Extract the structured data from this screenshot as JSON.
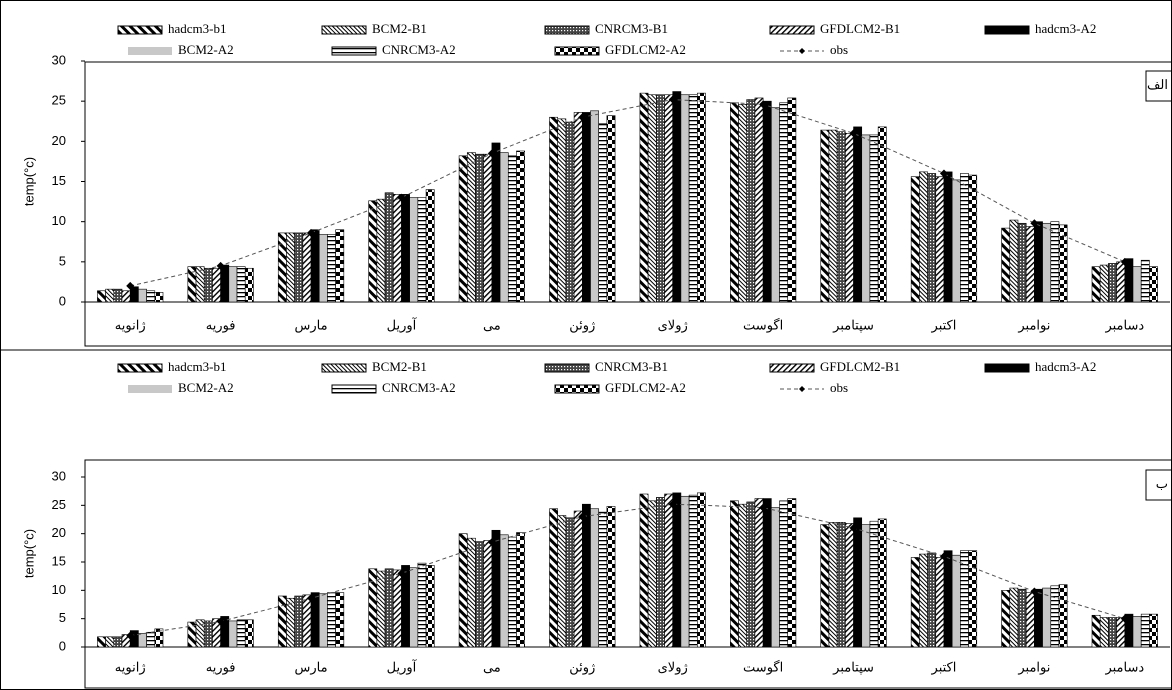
{
  "chart_data": [
    {
      "type": "bar",
      "panel_label": "الف",
      "y_label": "temp(°c)",
      "categories": [
        "ژانویه",
        "فوریه",
        "مارس",
        "آوریل",
        "می",
        "ژوئن",
        "ژولای",
        "اگوست",
        "سپتامبر",
        "اکتبر",
        "نوامبر",
        "دسامبر"
      ],
      "ylim": [
        0,
        30
      ],
      "yticks": [
        0,
        5,
        10,
        15,
        20,
        25,
        30
      ],
      "series": [
        {
          "name": "hadcm3-b1",
          "color": "#000000",
          "pattern": "wide-back-stripes",
          "values": [
            1.4,
            4.4,
            8.6,
            12.6,
            18.2,
            23.0,
            26.0,
            24.8,
            21.4,
            15.6,
            9.2,
            4.4
          ]
        },
        {
          "name": "BCM2-B1",
          "color": "#000000",
          "pattern": "fine-back-stripes",
          "values": [
            1.6,
            4.4,
            8.6,
            12.8,
            18.6,
            22.8,
            25.8,
            24.6,
            21.4,
            16.2,
            10.2,
            4.6
          ]
        },
        {
          "name": "CNRCM3-B1",
          "color": "#000000",
          "pattern": "crosshatch",
          "values": [
            1.6,
            4.2,
            8.6,
            13.6,
            18.4,
            22.4,
            25.8,
            25.2,
            21.2,
            16.0,
            9.8,
            4.8
          ]
        },
        {
          "name": "GFDLCM2-B1",
          "color": "#000000",
          "pattern": "fwd-stripes",
          "values": [
            1.4,
            4.2,
            8.6,
            13.4,
            18.4,
            23.6,
            25.8,
            25.4,
            21.0,
            15.6,
            9.4,
            5.0
          ]
        },
        {
          "name": "hadcm3-A2",
          "color": "#000000",
          "pattern": "solid",
          "values": [
            1.9,
            4.6,
            9.0,
            13.4,
            19.8,
            23.6,
            26.2,
            25.0,
            21.8,
            16.2,
            10.0,
            5.4
          ]
        },
        {
          "name": "BCM2-A2",
          "color": "#c8c8c8",
          "pattern": "solid",
          "values": [
            1.6,
            4.4,
            8.4,
            13.0,
            18.6,
            23.8,
            25.8,
            24.2,
            20.8,
            15.2,
            9.8,
            4.4
          ]
        },
        {
          "name": "CNRCM3-A2",
          "color": "#000000",
          "pattern": "horizontal-lines",
          "values": [
            1.4,
            4.4,
            8.4,
            13.0,
            18.2,
            22.2,
            25.8,
            24.8,
            20.8,
            16.0,
            10.0,
            5.2
          ]
        },
        {
          "name": "GFDLCM2-A2",
          "color": "#000000",
          "pattern": "checker",
          "values": [
            1.2,
            4.2,
            9.0,
            14.0,
            18.8,
            23.2,
            26.0,
            25.4,
            21.8,
            15.8,
            9.6,
            4.4
          ]
        },
        {
          "name": "obs",
          "color": "#555555",
          "mark": "dashed-line",
          "values": [
            2.0,
            4.5,
            8.6,
            13.0,
            18.5,
            23.0,
            25.2,
            24.6,
            21.0,
            16.0,
            9.8,
            5.0
          ]
        }
      ]
    },
    {
      "type": "bar",
      "panel_label": "ب",
      "y_label": "temp(°c)",
      "categories": [
        "ژانویه",
        "فوریه",
        "مارس",
        "آوریل",
        "می",
        "ژوئن",
        "ژولای",
        "اگوست",
        "سپتامبر",
        "اکتبر",
        "نوامبر",
        "دسامبر"
      ],
      "ylim": [
        0,
        33
      ],
      "yticks": [
        0,
        5,
        10,
        15,
        20,
        25,
        30
      ],
      "series": [
        {
          "name": "hadcm3-b1",
          "color": "#000000",
          "pattern": "wide-back-stripes",
          "values": [
            1.8,
            4.4,
            9.0,
            13.8,
            20.0,
            24.4,
            27.0,
            25.8,
            21.6,
            15.8,
            10.0,
            5.6
          ]
        },
        {
          "name": "BCM2-B1",
          "color": "#000000",
          "pattern": "fine-back-stripes",
          "values": [
            1.8,
            4.8,
            8.6,
            13.4,
            19.2,
            23.2,
            25.8,
            25.2,
            22.0,
            16.4,
            10.4,
            5.2
          ]
        },
        {
          "name": "CNRCM3-B1",
          "color": "#000000",
          "pattern": "crosshatch",
          "values": [
            1.8,
            4.6,
            9.0,
            13.8,
            18.6,
            22.8,
            26.4,
            25.6,
            22.0,
            16.6,
            10.2,
            5.2
          ]
        },
        {
          "name": "GFDLCM2-B1",
          "color": "#000000",
          "pattern": "fwd-stripes",
          "values": [
            2.2,
            5.0,
            9.2,
            13.6,
            18.8,
            24.0,
            27.0,
            26.2,
            21.8,
            15.8,
            9.6,
            5.2
          ]
        },
        {
          "name": "hadcm3-A2",
          "color": "#000000",
          "pattern": "solid",
          "values": [
            2.9,
            5.4,
            9.6,
            14.4,
            20.6,
            25.2,
            27.2,
            26.2,
            22.8,
            17.0,
            10.2,
            5.8
          ]
        },
        {
          "name": "BCM2-A2",
          "color": "#c8c8c8",
          "pattern": "solid",
          "values": [
            2.4,
            4.6,
            9.4,
            14.0,
            19.8,
            24.4,
            26.6,
            24.6,
            21.6,
            16.2,
            10.4,
            5.4
          ]
        },
        {
          "name": "CNRCM3-A2",
          "color": "#000000",
          "pattern": "horizontal-lines",
          "values": [
            2.6,
            4.8,
            9.6,
            14.8,
            19.4,
            23.8,
            26.8,
            25.8,
            22.2,
            17.0,
            10.8,
            5.8
          ]
        },
        {
          "name": "GFDLCM2-A2",
          "color": "#000000",
          "pattern": "checker",
          "values": [
            3.2,
            4.8,
            9.6,
            14.4,
            20.2,
            24.8,
            27.2,
            26.2,
            22.6,
            17.0,
            11.0,
            5.8
          ]
        },
        {
          "name": "obs",
          "color": "#555555",
          "mark": "dashed-line",
          "values": [
            2.0,
            4.5,
            8.6,
            13.0,
            18.5,
            23.0,
            25.2,
            24.6,
            21.0,
            16.0,
            9.8,
            5.0
          ]
        }
      ]
    }
  ]
}
